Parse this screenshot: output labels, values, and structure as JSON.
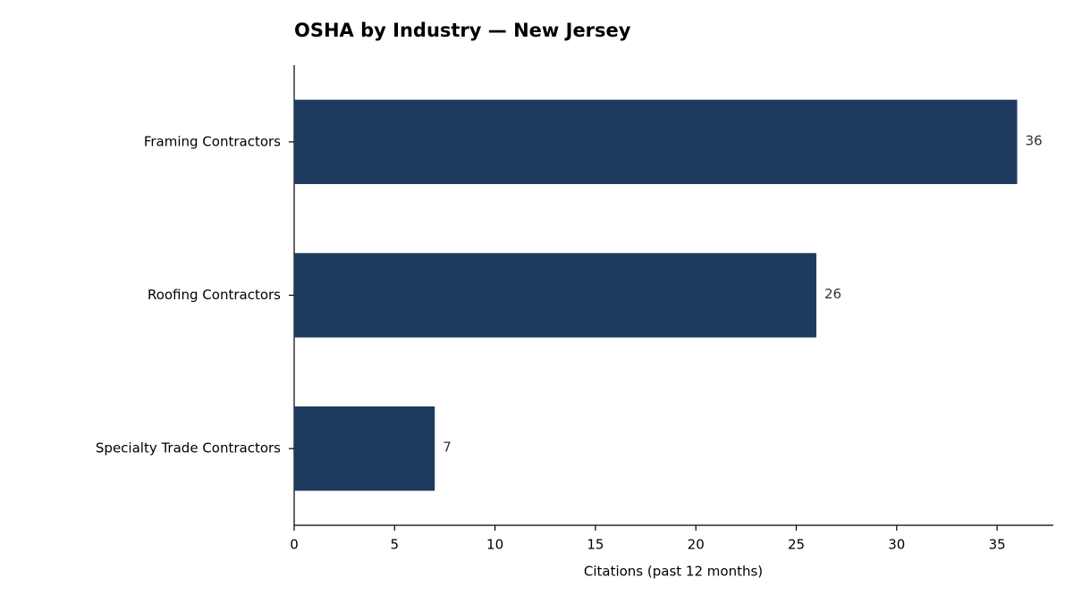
{
  "chart_data": {
    "type": "barh",
    "title": "OSHA by Industry — New Jersey",
    "categories": [
      "Framing Contractors",
      "Roofing Contractors",
      "Specialty Trade Contractors"
    ],
    "values": [
      36,
      26,
      7
    ],
    "color": "#1f3a5f",
    "xlabel": "Citations (past 12 months)",
    "xlim": [
      0,
      37.8
    ],
    "xticks": [
      0,
      5,
      10,
      15,
      20,
      25,
      30,
      35
    ]
  }
}
